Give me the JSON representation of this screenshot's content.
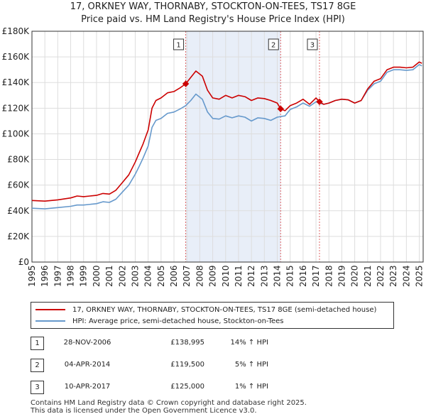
{
  "title": "17, ORKNEY WAY, THORNABY, STOCKTON-ON-TEES, TS17 8GE",
  "subtitle": "Price paid vs. HM Land Registry's House Price Index (HPI)",
  "colors": {
    "property": "#cc0000",
    "hpi": "#6699cc",
    "shade": "#e8eef8",
    "grid": "#dddddd"
  },
  "legend": {
    "property_label": "17, ORKNEY WAY, THORNABY, STOCKTON-ON-TEES, TS17 8GE (semi-detached house)",
    "hpi_label": "HPI: Average price, semi-detached house, Stockton-on-Tees"
  },
  "transactions": [
    {
      "num": "1",
      "date": "28-NOV-2006",
      "price": "£138,995",
      "hpi": "14% ↑ HPI"
    },
    {
      "num": "2",
      "date": "04-APR-2014",
      "price": "£119,500",
      "hpi": "5% ↑ HPI"
    },
    {
      "num": "3",
      "date": "10-APR-2017",
      "price": "£125,000",
      "hpi": "1% ↑ HPI"
    }
  ],
  "footer": {
    "line1": "Contains HM Land Registry data © Crown copyright and database right 2025.",
    "line2": "This data is licensed under the Open Government Licence v3.0."
  },
  "chart_data": {
    "type": "line",
    "title": "17, ORKNEY WAY, THORNABY, STOCKTON-ON-TEES, TS17 8GE",
    "subtitle": "Price paid vs. HM Land Registry's House Price Index (HPI)",
    "xlim": [
      1995,
      2025.3
    ],
    "ylim": [
      0,
      180000
    ],
    "y_ticks": [
      0,
      20000,
      40000,
      60000,
      80000,
      100000,
      120000,
      140000,
      160000,
      180000
    ],
    "y_tick_labels": [
      "£0",
      "£20K",
      "£40K",
      "£60K",
      "£80K",
      "£100K",
      "£120K",
      "£140K",
      "£160K",
      "£180K"
    ],
    "x_ticks": [
      1995,
      1996,
      1997,
      1998,
      1999,
      2000,
      2001,
      2002,
      2003,
      2004,
      2005,
      2006,
      2007,
      2008,
      2009,
      2010,
      2011,
      2012,
      2013,
      2014,
      2015,
      2016,
      2017,
      2018,
      2019,
      2020,
      2021,
      2022,
      2023,
      2024,
      2025
    ],
    "grid": true,
    "shaded_range": [
      2006.91,
      2014.26
    ],
    "sale_markers": [
      {
        "label": "1",
        "x": 2006.91,
        "y": 138995
      },
      {
        "label": "2",
        "x": 2014.26,
        "y": 119500
      },
      {
        "label": "3",
        "x": 2017.27,
        "y": 125000
      }
    ],
    "series": [
      {
        "name": "17, ORKNEY WAY, THORNABY, STOCKTON-ON-TEES, TS17 8GE (semi-detached house)",
        "x": [
          1995,
          1996,
          1997,
          1998,
          1998.5,
          1999,
          2000,
          2000.5,
          2001,
          2001.5,
          2002,
          2002.5,
          2003,
          2003.3,
          2003.6,
          2004,
          2004.3,
          2004.6,
          2005,
          2005.5,
          2006,
          2006.5,
          2006.91,
          2007.3,
          2007.7,
          2008.2,
          2008.6,
          2009,
          2009.5,
          2010,
          2010.5,
          2011,
          2011.5,
          2012,
          2012.5,
          2013,
          2013.5,
          2014,
          2014.26,
          2014.6,
          2015,
          2015.5,
          2016,
          2016.5,
          2017,
          2017.27,
          2017.6,
          2018,
          2018.5,
          2019,
          2019.5,
          2020,
          2020.5,
          2021,
          2021.5,
          2022,
          2022.5,
          2023,
          2023.5,
          2024,
          2024.5,
          2025,
          2025.2
        ],
        "values": [
          48000,
          47500,
          48500,
          50000,
          51500,
          51000,
          52000,
          53500,
          53000,
          56000,
          62000,
          68000,
          78000,
          85000,
          92000,
          103000,
          120000,
          126000,
          128000,
          132000,
          133000,
          136000,
          138995,
          144000,
          149000,
          145000,
          134000,
          128000,
          127000,
          130000,
          128000,
          130000,
          129000,
          126000,
          128000,
          127500,
          126000,
          124000,
          119500,
          118000,
          122000,
          124000,
          127000,
          123000,
          128000,
          125000,
          123000,
          124000,
          126000,
          127000,
          126500,
          124000,
          126000,
          135000,
          141000,
          143000,
          150000,
          152000,
          152000,
          151500,
          152000,
          156000,
          155000
        ]
      },
      {
        "name": "HPI: Average price, semi-detached house, Stockton-on-Tees",
        "x": [
          1995,
          1996,
          1997,
          1998,
          1998.5,
          1999,
          2000,
          2000.5,
          2001,
          2001.5,
          2002,
          2002.5,
          2003,
          2003.3,
          2003.6,
          2004,
          2004.3,
          2004.6,
          2005,
          2005.5,
          2006,
          2006.5,
          2006.91,
          2007.3,
          2007.7,
          2008.2,
          2008.6,
          2009,
          2009.5,
          2010,
          2010.5,
          2011,
          2011.5,
          2012,
          2012.5,
          2013,
          2013.5,
          2014,
          2014.26,
          2014.6,
          2015,
          2015.5,
          2016,
          2016.5,
          2017,
          2017.27,
          2017.6,
          2018,
          2018.5,
          2019,
          2019.5,
          2020,
          2020.5,
          2021,
          2021.5,
          2022,
          2022.5,
          2023,
          2023.5,
          2024,
          2024.5,
          2025,
          2025.2
        ],
        "values": [
          42000,
          41500,
          42500,
          43500,
          44500,
          44500,
          45500,
          47000,
          46500,
          49000,
          54500,
          60000,
          68500,
          74500,
          81000,
          90500,
          105000,
          110500,
          112000,
          116000,
          117000,
          119500,
          122000,
          126000,
          131000,
          127000,
          117000,
          112000,
          111500,
          114000,
          112500,
          114000,
          113000,
          110000,
          112500,
          112000,
          110500,
          113000,
          113500,
          114000,
          119000,
          121000,
          124000,
          121500,
          125000,
          124000,
          123000,
          124000,
          126000,
          127000,
          126500,
          124000,
          126000,
          134000,
          139000,
          141000,
          148000,
          150000,
          150000,
          149500,
          150000,
          154000,
          153000
        ]
      }
    ]
  }
}
